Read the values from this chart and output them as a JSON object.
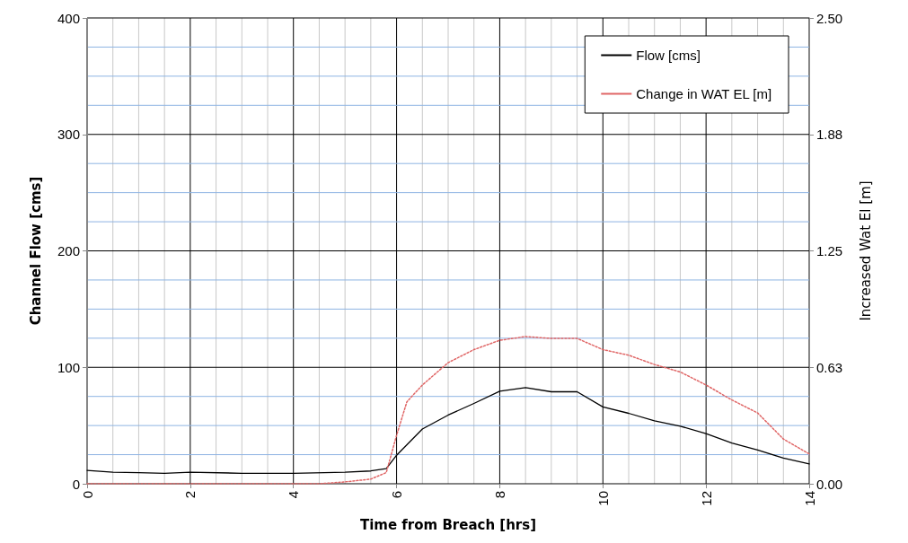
{
  "chart_data": {
    "type": "line",
    "xlabel": "Time from Breach [hrs]",
    "ylabel": "Channel Flow [cms]",
    "y2label": "Increased Wat El [m]",
    "xlim": [
      0,
      14
    ],
    "xticks": [
      0,
      {
        "value": 0.5,
        "label": null
      },
      {
        "value": 1,
        "label": null
      },
      {
        "value": 1.5,
        "label": null
      },
      2,
      {
        "value": 2.5,
        "label": null
      },
      {
        "value": 3,
        "label": null
      },
      {
        "value": 3.5,
        "label": null
      },
      4,
      {
        "value": 4.5,
        "label": null
      },
      {
        "value": 5,
        "label": null
      },
      {
        "value": 5.5,
        "label": null
      },
      6,
      {
        "value": 6.5,
        "label": null
      },
      {
        "value": 7,
        "label": null
      },
      {
        "value": 7.5,
        "label": null
      },
      8,
      {
        "value": 8.5,
        "label": null
      },
      {
        "value": 9,
        "label": null
      },
      {
        "value": 9.5,
        "label": null
      },
      10,
      {
        "value": 10.5,
        "label": null
      },
      {
        "value": 11,
        "label": null
      },
      {
        "value": 11.5,
        "label": null
      },
      12,
      {
        "value": 12.5,
        "label": null
      },
      {
        "value": 13,
        "label": null
      },
      {
        "value": 13.5,
        "label": null
      },
      14
    ],
    "ylim": [
      0,
      400
    ],
    "yticks": [
      0,
      {
        "value": 25,
        "label": null
      },
      {
        "value": 50,
        "label": null
      },
      {
        "value": 75,
        "label": null
      },
      100,
      {
        "value": 125,
        "label": null
      },
      {
        "value": 150,
        "label": null
      },
      {
        "value": 175,
        "label": null
      },
      200,
      {
        "value": 225,
        "label": null
      },
      {
        "value": 250,
        "label": null
      },
      {
        "value": 275,
        "label": null
      },
      300,
      {
        "value": 325,
        "label": null
      },
      {
        "value": 350,
        "label": null
      },
      {
        "value": 375,
        "label": null
      },
      400
    ],
    "y2lim": [
      0,
      2.5
    ],
    "y2ticks": [
      {
        "value": 0,
        "label": "0.00"
      },
      {
        "value": 0.625,
        "label": "0.63"
      },
      {
        "value": 1.25,
        "label": "1.25"
      },
      {
        "value": 1.875,
        "label": "1.88"
      },
      {
        "value": 2.5,
        "label": "2.50"
      }
    ],
    "grid": true,
    "legend": "top right",
    "marker": "none",
    "series": [
      {
        "name": "Flow [cms]",
        "color": "#000000",
        "line_style": "solid",
        "x": [
          0,
          0.5,
          1,
          1.5,
          2,
          3,
          4,
          5,
          5.5,
          5.8,
          6,
          6.5,
          7,
          7.5,
          8,
          8.5,
          9,
          9.5,
          10,
          10.5,
          11,
          11.5,
          12,
          12.5,
          13,
          13.5,
          14
        ],
        "values": [
          11.5,
          10,
          9.5,
          9,
          10,
          9,
          9,
          10,
          11,
          13,
          24.5,
          47,
          59,
          69,
          79.5,
          82.5,
          79,
          79,
          66,
          60.5,
          54,
          49.5,
          43,
          35,
          29,
          22,
          17
        ]
      },
      {
        "name": "Change in WAT EL [m]",
        "color": "#e06666",
        "line_style": "dotted",
        "axis": "y2",
        "x": [
          0,
          1,
          2,
          3,
          4,
          4.5,
          5,
          5.5,
          5.8,
          6,
          6.2,
          6.5,
          7,
          7.5,
          8,
          8.5,
          9,
          9.5,
          10,
          10.5,
          11,
          11.5,
          12,
          12.5,
          13,
          13.5,
          14
        ],
        "values": [
          0,
          0,
          0,
          0,
          0,
          0,
          0.01,
          0.025,
          0.06,
          0.26,
          0.44,
          0.53,
          0.65,
          0.72,
          0.77,
          0.79,
          0.78,
          0.78,
          0.72,
          0.69,
          0.64,
          0.6,
          0.53,
          0.45,
          0.38,
          0.24,
          0.16
        ]
      }
    ]
  }
}
